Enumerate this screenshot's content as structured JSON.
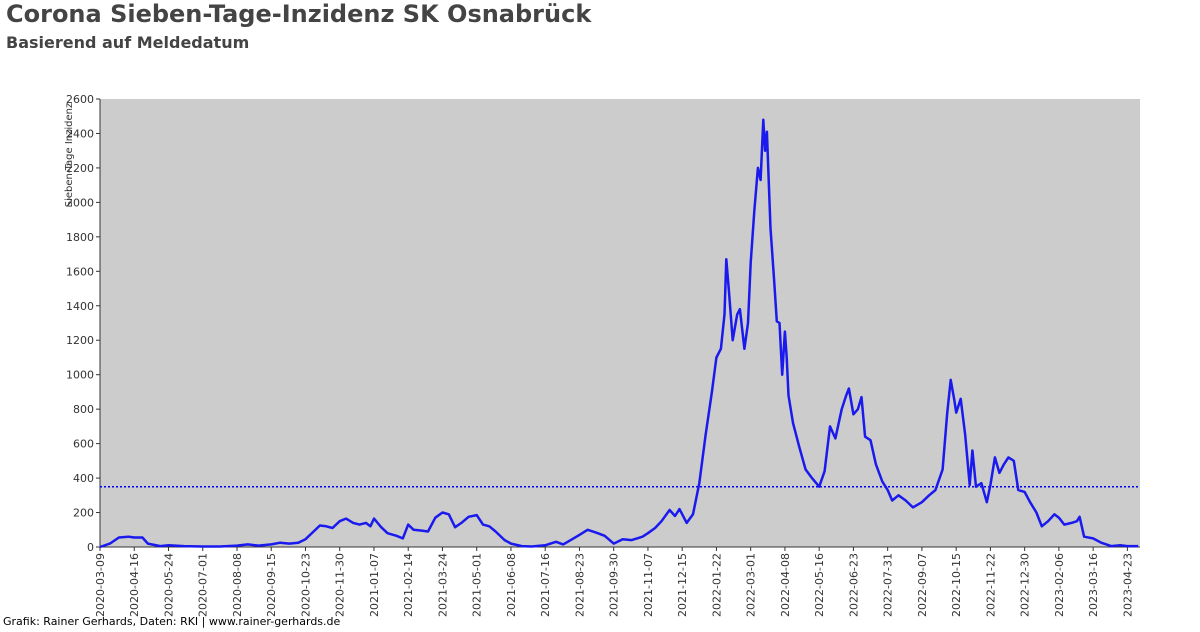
{
  "chart_data": {
    "type": "line",
    "title": "Corona Sieben-Tage-Inzidenz SK Osnabrück",
    "subtitle": "Basierend auf Meldedatum",
    "y_label": "Sieben-Tage Inzidenz",
    "footer": "Grafik: Rainer Gerhards, Daten: RKI | www.rainer-gerhards.de",
    "hline": 350,
    "hline_color": "#0000ee",
    "xlim": [
      "2020-03-09",
      "2023-05-07"
    ],
    "xticks": [
      "2020-03-09",
      "2020-04-16",
      "2020-05-24",
      "2020-07-01",
      "2020-08-08",
      "2020-09-15",
      "2020-10-23",
      "2020-11-30",
      "2021-01-07",
      "2021-02-14",
      "2021-03-24",
      "2021-05-01",
      "2021-06-08",
      "2021-07-16",
      "2021-08-23",
      "2021-09-30",
      "2021-11-07",
      "2021-12-15",
      "2022-01-22",
      "2022-03-01",
      "2022-04-08",
      "2022-05-16",
      "2022-06-23",
      "2022-07-31",
      "2022-09-07",
      "2022-10-15",
      "2022-11-22",
      "2022-12-30",
      "2023-02-06",
      "2023-03-16",
      "2023-04-23"
    ],
    "ylim": [
      0,
      2600
    ],
    "yticks": [
      0,
      200,
      400,
      600,
      800,
      1000,
      1200,
      1400,
      1600,
      1800,
      2000,
      2200,
      2400,
      2600
    ],
    "x": [
      "2020-03-09",
      "2020-03-20",
      "2020-03-30",
      "2020-04-10",
      "2020-04-16",
      "2020-04-25",
      "2020-05-01",
      "2020-05-15",
      "2020-05-24",
      "2020-06-10",
      "2020-07-01",
      "2020-07-20",
      "2020-08-08",
      "2020-08-20",
      "2020-09-01",
      "2020-09-15",
      "2020-09-25",
      "2020-10-05",
      "2020-10-15",
      "2020-10-23",
      "2020-11-01",
      "2020-11-08",
      "2020-11-15",
      "2020-11-22",
      "2020-11-30",
      "2020-12-07",
      "2020-12-15",
      "2020-12-22",
      "2020-12-29",
      "2021-01-03",
      "2021-01-07",
      "2021-01-15",
      "2021-01-22",
      "2021-02-01",
      "2021-02-08",
      "2021-02-14",
      "2021-02-20",
      "2021-03-01",
      "2021-03-08",
      "2021-03-16",
      "2021-03-24",
      "2021-03-31",
      "2021-04-07",
      "2021-04-14",
      "2021-04-22",
      "2021-05-01",
      "2021-05-08",
      "2021-05-15",
      "2021-05-22",
      "2021-06-01",
      "2021-06-08",
      "2021-06-20",
      "2021-07-01",
      "2021-07-16",
      "2021-07-28",
      "2021-08-05",
      "2021-08-15",
      "2021-08-23",
      "2021-09-01",
      "2021-09-10",
      "2021-09-20",
      "2021-09-30",
      "2021-10-10",
      "2021-10-20",
      "2021-11-01",
      "2021-11-07",
      "2021-11-15",
      "2021-11-22",
      "2021-12-01",
      "2021-12-07",
      "2021-12-12",
      "2021-12-20",
      "2021-12-27",
      "2022-01-03",
      "2022-01-10",
      "2022-01-17",
      "2022-01-22",
      "2022-01-27",
      "2022-01-31",
      "2022-02-02",
      "2022-02-05",
      "2022-02-09",
      "2022-02-14",
      "2022-02-17",
      "2022-02-22",
      "2022-02-26",
      "2022-03-01",
      "2022-03-05",
      "2022-03-09",
      "2022-03-12",
      "2022-03-15",
      "2022-03-17",
      "2022-03-19",
      "2022-03-23",
      "2022-03-27",
      "2022-03-30",
      "2022-04-02",
      "2022-04-05",
      "2022-04-08",
      "2022-04-10",
      "2022-04-12",
      "2022-04-17",
      "2022-04-24",
      "2022-05-01",
      "2022-05-08",
      "2022-05-16",
      "2022-05-22",
      "2022-05-28",
      "2022-06-03",
      "2022-06-10",
      "2022-06-15",
      "2022-06-18",
      "2022-06-23",
      "2022-06-28",
      "2022-07-02",
      "2022-07-06",
      "2022-07-12",
      "2022-07-18",
      "2022-07-25",
      "2022-07-31",
      "2022-08-05",
      "2022-08-12",
      "2022-08-20",
      "2022-08-28",
      "2022-09-07",
      "2022-09-15",
      "2022-09-22",
      "2022-09-30",
      "2022-10-05",
      "2022-10-09",
      "2022-10-13",
      "2022-10-15",
      "2022-10-20",
      "2022-10-25",
      "2022-10-30",
      "2022-11-02",
      "2022-11-06",
      "2022-11-12",
      "2022-11-18",
      "2022-11-22",
      "2022-11-27",
      "2022-12-02",
      "2022-12-07",
      "2022-12-12",
      "2022-12-18",
      "2022-12-23",
      "2022-12-30",
      "2023-01-05",
      "2023-01-12",
      "2023-01-18",
      "2023-01-25",
      "2023-02-01",
      "2023-02-06",
      "2023-02-12",
      "2023-02-20",
      "2023-02-26",
      "2023-03-01",
      "2023-03-06",
      "2023-03-16",
      "2023-03-25",
      "2023-04-05",
      "2023-04-15",
      "2023-04-23",
      "2023-05-05"
    ],
    "series": [
      {
        "name": "Sieben-Tage Inzidenz",
        "color": "#1a1aee",
        "values": [
          0,
          20,
          55,
          60,
          55,
          55,
          20,
          5,
          10,
          5,
          3,
          3,
          8,
          15,
          8,
          15,
          25,
          20,
          25,
          45,
          90,
          125,
          120,
          110,
          150,
          165,
          140,
          130,
          140,
          120,
          165,
          115,
          80,
          65,
          50,
          130,
          100,
          95,
          90,
          170,
          200,
          190,
          115,
          140,
          175,
          185,
          130,
          120,
          90,
          40,
          20,
          5,
          3,
          10,
          30,
          15,
          45,
          70,
          100,
          85,
          65,
          20,
          45,
          40,
          60,
          80,
          110,
          150,
          215,
          180,
          220,
          140,
          190,
          370,
          650,
          900,
          1100,
          1150,
          1350,
          1670,
          1480,
          1200,
          1350,
          1380,
          1150,
          1300,
          1650,
          1950,
          2200,
          2130,
          2480,
          2300,
          2410,
          1850,
          1550,
          1310,
          1300,
          1000,
          1250,
          1100,
          880,
          720,
          580,
          450,
          400,
          350,
          440,
          700,
          630,
          800,
          880,
          920,
          770,
          800,
          870,
          640,
          620,
          480,
          380,
          330,
          270,
          300,
          270,
          230,
          260,
          300,
          330,
          450,
          770,
          970,
          850,
          780,
          860,
          650,
          360,
          560,
          350,
          370,
          260,
          360,
          520,
          430,
          480,
          520,
          500,
          330,
          320,
          260,
          200,
          120,
          150,
          190,
          170,
          130,
          140,
          150,
          175,
          60,
          50,
          25,
          5,
          10,
          5,
          5
        ]
      }
    ]
  }
}
